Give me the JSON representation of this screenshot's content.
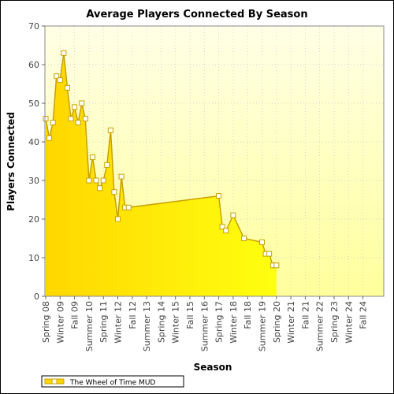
{
  "chart_data": {
    "type": "area",
    "title": "Average Players Connected By Season",
    "xlabel": "Season",
    "ylabel": "Players Connected",
    "ylim": [
      0,
      70
    ],
    "yticks": [
      0,
      10,
      20,
      30,
      40,
      50,
      60,
      70
    ],
    "grid": true,
    "legend_position": "bottom-left",
    "colors": {
      "fill": "#ffd700",
      "line": "#c8a000",
      "marker_fill": "#ffffff",
      "background_top": "#ffffe6",
      "background_bottom": "#ffff9c"
    },
    "x_ticks": [
      "Spring 08",
      "Winter 09",
      "Fall 09",
      "Summer 10",
      "Spring 11",
      "Winter 12",
      "Fall 12",
      "Summer 13",
      "Spring 14",
      "Winter 15",
      "Fall 15",
      "Summer 16",
      "Spring 17",
      "Winter 18",
      "Fall 18",
      "Summer 19",
      "Spring 20",
      "Winter 21",
      "Fall 21",
      "Summer 22",
      "Spring 23",
      "Winter 24",
      "Fall 24"
    ],
    "series": [
      {
        "name": "The Wheel of Time MUD",
        "points": [
          {
            "x": 0.0,
            "y": 46,
            "marker": true
          },
          {
            "x": 0.25,
            "y": 41,
            "marker": true
          },
          {
            "x": 0.5,
            "y": 45,
            "marker": true
          },
          {
            "x": 0.75,
            "y": 57,
            "marker": true
          },
          {
            "x": 1.0,
            "y": 56,
            "marker": true
          },
          {
            "x": 1.25,
            "y": 63,
            "marker": true
          },
          {
            "x": 1.5,
            "y": 54,
            "marker": true
          },
          {
            "x": 1.75,
            "y": 46,
            "marker": true
          },
          {
            "x": 2.0,
            "y": 49,
            "marker": true
          },
          {
            "x": 2.25,
            "y": 45,
            "marker": true
          },
          {
            "x": 2.5,
            "y": 50,
            "marker": true
          },
          {
            "x": 2.75,
            "y": 46,
            "marker": true
          },
          {
            "x": 3.0,
            "y": 30,
            "marker": true
          },
          {
            "x": 3.25,
            "y": 36,
            "marker": true
          },
          {
            "x": 3.5,
            "y": 30,
            "marker": true
          },
          {
            "x": 3.75,
            "y": 28,
            "marker": true
          },
          {
            "x": 4.0,
            "y": 30,
            "marker": true
          },
          {
            "x": 4.25,
            "y": 34,
            "marker": true
          },
          {
            "x": 4.5,
            "y": 43,
            "marker": true
          },
          {
            "x": 4.75,
            "y": 27,
            "marker": true
          },
          {
            "x": 5.0,
            "y": 20,
            "marker": true
          },
          {
            "x": 5.25,
            "y": 31,
            "marker": true
          },
          {
            "x": 5.5,
            "y": 23,
            "marker": true
          },
          {
            "x": 5.75,
            "y": 23,
            "marker": true
          },
          {
            "x": 12.0,
            "y": 26,
            "marker": true
          },
          {
            "x": 12.25,
            "y": 18,
            "marker": true
          },
          {
            "x": 12.5,
            "y": 17,
            "marker": true
          },
          {
            "x": 13.0,
            "y": 21,
            "marker": true
          },
          {
            "x": 13.75,
            "y": 15,
            "marker": true
          },
          {
            "x": 15.0,
            "y": 14,
            "marker": true
          },
          {
            "x": 15.25,
            "y": 11,
            "marker": true
          },
          {
            "x": 15.5,
            "y": 11,
            "marker": true
          },
          {
            "x": 15.75,
            "y": 8,
            "marker": true
          },
          {
            "x": 16.0,
            "y": 8,
            "marker": true
          }
        ]
      }
    ]
  }
}
